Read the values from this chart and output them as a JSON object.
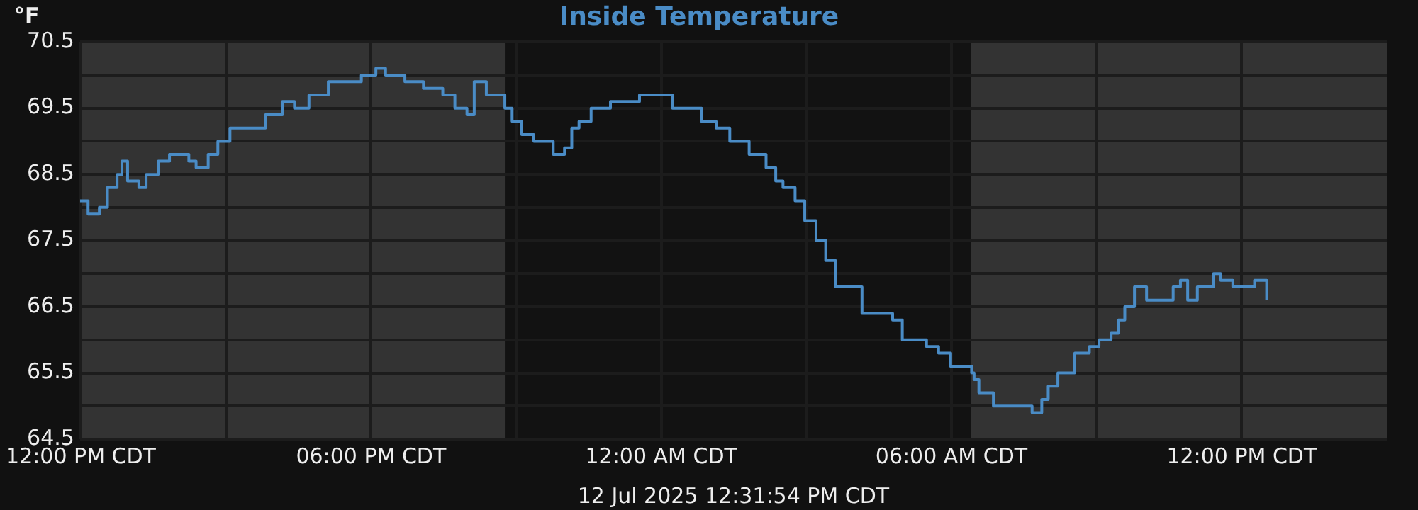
{
  "chart_data": {
    "type": "step",
    "title": "Inside Temperature",
    "ylabel": "°F",
    "xlabel": "12 Jul 2025 12:31:54 PM CDT",
    "x": [
      "2025-07-11T11:59",
      "2025-07-11T12:09",
      "2025-07-11T12:23",
      "2025-07-11T12:33",
      "2025-07-11T12:45",
      "2025-07-11T12:51",
      "2025-07-11T12:58",
      "2025-07-11T13:12",
      "2025-07-11T13:21",
      "2025-07-11T13:36",
      "2025-07-11T13:50",
      "2025-07-11T14:14",
      "2025-07-11T14:23",
      "2025-07-11T14:38",
      "2025-07-11T14:50",
      "2025-07-11T15:05",
      "2025-07-11T15:37",
      "2025-07-11T15:49",
      "2025-07-11T16:10",
      "2025-07-11T16:25",
      "2025-07-11T16:43",
      "2025-07-11T17:07",
      "2025-07-11T17:36",
      "2025-07-11T17:48",
      "2025-07-11T18:06",
      "2025-07-11T18:18",
      "2025-07-11T18:42",
      "2025-07-11T19:05",
      "2025-07-11T19:29",
      "2025-07-11T19:44",
      "2025-07-11T19:59",
      "2025-07-11T20:08",
      "2025-07-11T20:23",
      "2025-07-11T20:46",
      "2025-07-11T20:55",
      "2025-07-11T21:07",
      "2025-07-11T21:22",
      "2025-07-11T21:46",
      "2025-07-11T22:00",
      "2025-07-11T22:09",
      "2025-07-11T22:18",
      "2025-07-11T22:33",
      "2025-07-11T22:57",
      "2025-07-11T23:33",
      "2025-07-11T23:56",
      "2025-07-12T00:14",
      "2025-07-12T00:50",
      "2025-07-12T01:08",
      "2025-07-12T01:25",
      "2025-07-12T01:49",
      "2025-07-12T02:10",
      "2025-07-12T02:22",
      "2025-07-12T02:31",
      "2025-07-12T02:46",
      "2025-07-12T02:58",
      "2025-07-12T03:12",
      "2025-07-12T03:24",
      "2025-07-12T03:36",
      "2025-07-12T03:54",
      "2025-07-12T04:09",
      "2025-07-12T04:47",
      "2025-07-12T04:59",
      "2025-07-12T05:29",
      "2025-07-12T05:44",
      "2025-07-12T05:59",
      "2025-07-12T06:25",
      "2025-07-12T06:28",
      "2025-07-12T06:34",
      "2025-07-12T06:52",
      "2025-07-12T07:16",
      "2025-07-12T07:40",
      "2025-07-12T07:52",
      "2025-07-12T08:00",
      "2025-07-12T08:12",
      "2025-07-12T08:33",
      "2025-07-12T08:51",
      "2025-07-12T09:03",
      "2025-07-12T09:18",
      "2025-07-12T09:27",
      "2025-07-12T09:35",
      "2025-07-12T09:47",
      "2025-07-12T10:02",
      "2025-07-12T10:20",
      "2025-07-12T10:35",
      "2025-07-12T10:44",
      "2025-07-12T10:53",
      "2025-07-12T11:05",
      "2025-07-12T11:25",
      "2025-07-12T11:34",
      "2025-07-12T11:49",
      "2025-07-12T12:16",
      "2025-07-12T12:31"
    ],
    "series": [
      {
        "color": "#4a8cc6",
        "values": [
          68.1,
          67.9,
          68.0,
          68.3,
          68.5,
          68.7,
          68.4,
          68.3,
          68.5,
          68.7,
          68.8,
          68.7,
          68.6,
          68.8,
          69.0,
          69.2,
          69.2,
          69.4,
          69.6,
          69.5,
          69.7,
          69.9,
          69.9,
          70.0,
          70.1,
          70.0,
          69.9,
          69.8,
          69.7,
          69.5,
          69.4,
          69.9,
          69.7,
          69.5,
          69.3,
          69.1,
          69.0,
          68.8,
          68.9,
          69.2,
          69.3,
          69.5,
          69.6,
          69.7,
          69.7,
          69.5,
          69.3,
          69.2,
          69.0,
          68.8,
          68.6,
          68.4,
          68.3,
          68.1,
          67.8,
          67.5,
          67.2,
          66.8,
          66.8,
          66.4,
          66.3,
          66.0,
          65.9,
          65.8,
          65.6,
          65.5,
          65.4,
          65.2,
          65.0,
          65.0,
          64.9,
          65.1,
          65.3,
          65.5,
          65.8,
          65.9,
          66.0,
          66.1,
          66.3,
          66.5,
          66.8,
          66.6,
          66.6,
          66.8,
          66.9,
          66.6,
          66.8,
          67.0,
          66.9,
          66.8,
          66.9,
          66.6
        ]
      }
    ],
    "xlim": [
      "2025-07-11T11:59",
      "2025-07-12T15:00"
    ],
    "xticks": [
      {
        "value": "2025-07-11T12:00",
        "label": "12:00 PM CDT"
      },
      {
        "value": "2025-07-11T15:00",
        "label": null
      },
      {
        "value": "2025-07-11T18:00",
        "label": "06:00 PM CDT"
      },
      {
        "value": "2025-07-11T21:00",
        "label": null
      },
      {
        "value": "2025-07-12T00:00",
        "label": "12:00 AM CDT"
      },
      {
        "value": "2025-07-12T03:00",
        "label": null
      },
      {
        "value": "2025-07-12T06:00",
        "label": "06:00 AM CDT"
      },
      {
        "value": "2025-07-12T09:00",
        "label": null
      },
      {
        "value": "2025-07-12T12:00",
        "label": "12:00 PM CDT"
      }
    ],
    "ylim": [
      64.5,
      70.5
    ],
    "yticks": [
      64.5,
      {
        "value": 65,
        "label": null
      },
      65.5,
      {
        "value": 66,
        "label": null
      },
      66.5,
      {
        "value": 67,
        "label": null
      },
      67.5,
      {
        "value": 68,
        "label": null
      },
      68.5,
      {
        "value": 69,
        "label": null
      },
      69.5,
      {
        "value": 70,
        "label": null
      },
      70.5
    ],
    "bands": [
      {
        "axis": "x",
        "from": "2025-07-11T20:46",
        "to": "2025-07-12T06:24",
        "color": "#121212"
      }
    ],
    "grid": true
  }
}
